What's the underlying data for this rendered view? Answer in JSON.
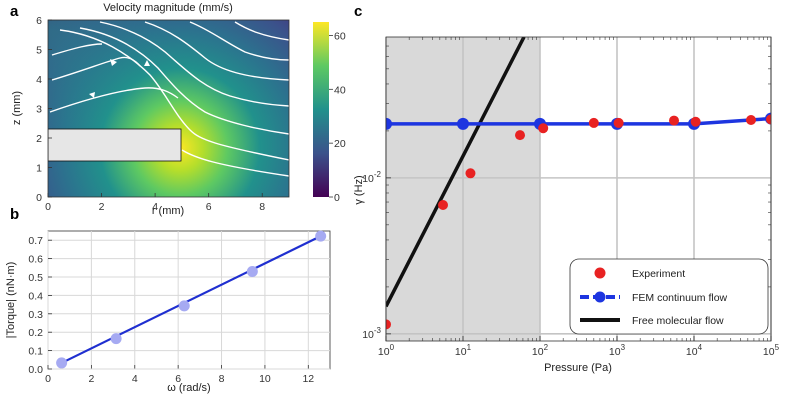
{
  "panels": {
    "a": {
      "label": "a"
    },
    "b": {
      "label": "b"
    },
    "c": {
      "label": "c"
    }
  },
  "chart_data": [
    {
      "type": "heatmap",
      "panel": "a",
      "title": "Velocity magnitude (mm/s)",
      "xlabel": "r (mm)",
      "ylabel": "z (mm)",
      "xlim": [
        0,
        9
      ],
      "ylim": [
        0,
        6
      ],
      "xticks": [
        "0",
        "2",
        "4",
        "6",
        "8"
      ],
      "yticks": [
        "0",
        "1",
        "2",
        "3",
        "4",
        "5",
        "6"
      ],
      "colorbar": {
        "range": [
          0,
          65
        ],
        "ticks": [
          "0",
          "20",
          "40",
          "60"
        ],
        "colors": [
          "#440154",
          "#3b528b",
          "#21918c",
          "#5ec962",
          "#fde725"
        ]
      },
      "rotor": {
        "r": [
          0,
          5
        ],
        "z": [
          0.85,
          2.0
        ],
        "color": "#e6e6e6"
      },
      "max_region": {
        "r": 5,
        "z": 1.7
      },
      "streamlines": "white"
    },
    {
      "type": "scatter",
      "panel": "b",
      "xlabel": "ω (rad/s)",
      "ylabel": "|Torque| (nN·m)",
      "xlim": [
        0,
        13
      ],
      "ylim": [
        0,
        0.75
      ],
      "xticks": [
        "0",
        "2",
        "4",
        "6",
        "8",
        "10",
        "12"
      ],
      "yticks": [
        "0.0",
        "0.1",
        "0.2",
        "0.3",
        "0.4",
        "0.5",
        "0.6",
        "0.7"
      ],
      "x": [
        0.628,
        3.14,
        6.28,
        9.42,
        12.57
      ],
      "y": [
        0.033,
        0.165,
        0.343,
        0.53,
        0.722
      ],
      "fit_line": {
        "x": [
          0.628,
          12.57
        ],
        "y": [
          0.033,
          0.722
        ],
        "color": "#1f2fd0"
      },
      "marker_color": "#a6aaf2",
      "grid": true
    },
    {
      "type": "scatter",
      "panel": "c",
      "xlabel": "Pressure (Pa)",
      "ylabel": "γ (Hz)",
      "xscale": "log",
      "yscale": "log",
      "xlim": [
        1,
        100000
      ],
      "ylim": [
        0.0009,
        0.08
      ],
      "xticks": [
        {
          "base": "10",
          "exp": "0"
        },
        {
          "base": "10",
          "exp": "1"
        },
        {
          "base": "10",
          "exp": "2"
        },
        {
          "base": "10",
          "exp": "3"
        },
        {
          "base": "10",
          "exp": "4"
        },
        {
          "base": "10",
          "exp": "5"
        }
      ],
      "yticks": [
        {
          "base": "10",
          "exp": "-3",
          "value": 0.001
        },
        {
          "base": "10",
          "exp": "-2",
          "value": 0.01
        }
      ],
      "shaded_region": {
        "x": [
          1,
          100
        ],
        "color": "#d9d9d9"
      },
      "grid": true,
      "legend": {
        "placement": "bottom-right"
      },
      "series": [
        {
          "name": "Experiment",
          "kind": "markers",
          "color": "#e82222",
          "x": [
            1,
            5.5,
            12.5,
            55,
            110,
            500,
            1050,
            5500,
            10500,
            55000,
            100000
          ],
          "y": [
            0.00115,
            0.0067,
            0.0107,
            0.0188,
            0.0208,
            0.0225,
            0.0225,
            0.0233,
            0.0229,
            0.0235,
            0.0237
          ]
        },
        {
          "name": "FEM continuum flow",
          "kind": "line-markers",
          "color": "#1d35e0",
          "x": [
            1,
            10,
            100,
            1000,
            10000,
            100000
          ],
          "y": [
            0.0222,
            0.0222,
            0.0222,
            0.0222,
            0.0222,
            0.024
          ]
        },
        {
          "name": "Free molecular flow",
          "kind": "line",
          "color": "#111111",
          "x": [
            1,
            62
          ],
          "y": [
            0.0015,
            0.08
          ]
        }
      ]
    }
  ]
}
